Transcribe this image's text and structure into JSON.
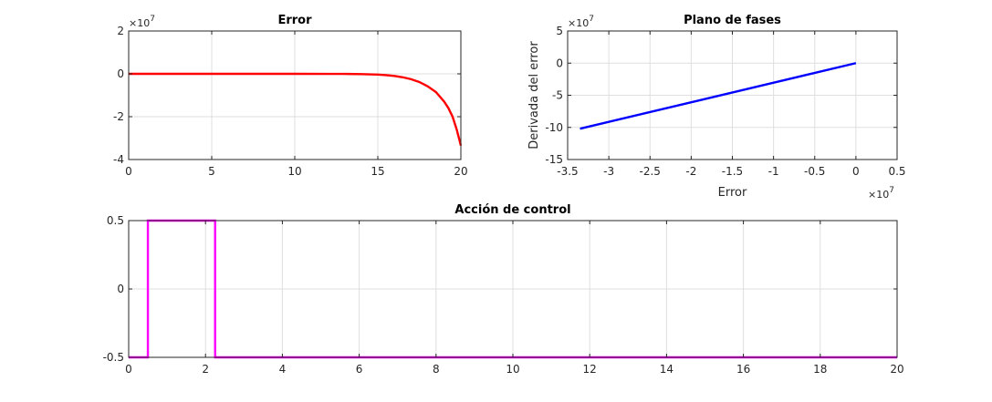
{
  "chart_data": [
    {
      "id": "error",
      "type": "line",
      "title": "Error",
      "xlabel": "",
      "ylabel": "",
      "y_exponent": "10^7",
      "xlim": [
        0,
        20
      ],
      "ylim": [
        -4,
        2
      ],
      "xticks": [
        0,
        5,
        10,
        15,
        20
      ],
      "yticks": [
        -4,
        -2,
        0,
        2
      ],
      "grid": true,
      "series": [
        {
          "color": "#ff0000",
          "x": [
            0,
            2,
            4,
            6,
            8,
            10,
            12,
            13,
            14,
            15,
            15.5,
            16,
            16.5,
            17,
            17.5,
            18,
            18.5,
            19,
            19.25,
            19.5,
            19.75,
            20
          ],
          "y": [
            0,
            0,
            0,
            0,
            0,
            0,
            -0.001,
            -0.004,
            -0.012,
            -0.035,
            -0.06,
            -0.1,
            -0.16,
            -0.25,
            -0.38,
            -0.58,
            -0.85,
            -1.3,
            -1.6,
            -2.0,
            -2.6,
            -3.35
          ]
        }
      ]
    },
    {
      "id": "phase",
      "type": "line",
      "title": "Plano de fases",
      "xlabel": "Error",
      "ylabel": "Derivada del error",
      "x_exponent": "10^7",
      "y_exponent": "10^7",
      "xlim": [
        -3.5,
        0.5
      ],
      "ylim": [
        -15,
        5
      ],
      "xticks": [
        -3.5,
        -3,
        -2.5,
        -2,
        -1.5,
        -1,
        -0.5,
        0,
        0.5
      ],
      "xtick_labels": [
        "-3.5",
        "-3",
        "-2.5",
        "-2",
        "-1.5",
        "-1",
        "-0.5",
        "0",
        "0.5"
      ],
      "yticks": [
        -15,
        -10,
        -5,
        0,
        5
      ],
      "grid": true,
      "series": [
        {
          "color": "#0000ff",
          "x": [
            -3.35,
            0
          ],
          "y": [
            -10.2,
            0
          ]
        }
      ]
    },
    {
      "id": "control",
      "type": "line",
      "title": "Acción de control",
      "xlabel": "",
      "ylabel": "",
      "xlim": [
        0,
        20
      ],
      "ylim": [
        -0.5,
        0.5
      ],
      "xticks": [
        0,
        2,
        4,
        6,
        8,
        10,
        12,
        14,
        16,
        18,
        20
      ],
      "yticks": [
        -0.5,
        0,
        0.5
      ],
      "grid": true,
      "series": [
        {
          "color": "#ff00ff",
          "x": [
            0,
            0.5,
            0.5,
            2.25,
            2.25,
            20
          ],
          "y": [
            -0.5,
            -0.5,
            0.5,
            0.5,
            -0.5,
            -0.5
          ]
        }
      ]
    }
  ]
}
